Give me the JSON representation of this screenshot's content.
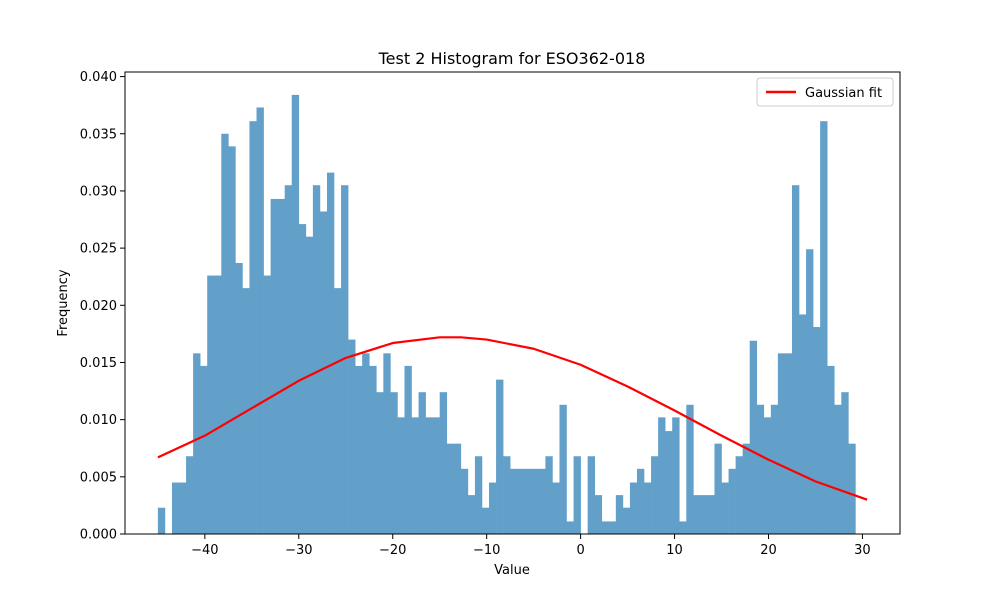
{
  "chart_data": {
    "type": "bar",
    "title": "Test 2 Histogram for ESO362-018",
    "xlabel": "Value",
    "ylabel": "Frequency",
    "xlim": [
      -48.5,
      34.0
    ],
    "ylim": [
      0,
      0.0404
    ],
    "xticks": [
      -40,
      -30,
      -20,
      -10,
      0,
      10,
      20,
      30
    ],
    "yticks": [
      0.0,
      0.005,
      0.01,
      0.015,
      0.02,
      0.025,
      0.03,
      0.035,
      0.04
    ],
    "ytick_labels": [
      "0.000",
      "0.005",
      "0.010",
      "0.015",
      "0.020",
      "0.025",
      "0.030",
      "0.035",
      "0.040"
    ],
    "grid": false,
    "legend_position": "upper right",
    "colors": {
      "bars": "#62a0ca",
      "fit": "#ff0000"
    },
    "histogram": {
      "bin_start": -45.0,
      "bin_width": 0.75,
      "frequencies": [
        0.0023,
        0,
        0.0045,
        0.0045,
        0.0068,
        0.0158,
        0.0147,
        0.0226,
        0.0226,
        0.035,
        0.0339,
        0.0237,
        0.0215,
        0.0361,
        0.0373,
        0.0226,
        0.0293,
        0.0293,
        0.0305,
        0.0384,
        0.0271,
        0.026,
        0.0305,
        0.0282,
        0.0316,
        0.0215,
        0.0305,
        0.017,
        0.0147,
        0.0158,
        0.0147,
        0.0124,
        0.0158,
        0.0124,
        0.0102,
        0.0147,
        0.0102,
        0.0124,
        0.0102,
        0.0102,
        0.0124,
        0.0079,
        0.0079,
        0.0057,
        0.0034,
        0.0068,
        0.0023,
        0.0045,
        0.0135,
        0.0068,
        0.0057,
        0.0057,
        0.0057,
        0.0057,
        0.0057,
        0.0068,
        0.0045,
        0.0113,
        0.0011,
        0.0068,
        0.0,
        0.0068,
        0.0034,
        0.0011,
        0.0011,
        0.0034,
        0.0023,
        0.0045,
        0.0057,
        0.0045,
        0.0068,
        0.0102,
        0.009,
        0.0102,
        0.0011,
        0.0113,
        0.0034,
        0.0034,
        0.0034,
        0.0079,
        0.0045,
        0.0057,
        0.0068,
        0.0079,
        0.0169,
        0.0113,
        0.0102,
        0.0113,
        0.0158,
        0.0158,
        0.0305,
        0.0192,
        0.0249,
        0.0181,
        0.0361,
        0.0147,
        0.0113,
        0.0124,
        0.0079
      ]
    },
    "series": [
      {
        "name": "Gaussian fit",
        "type": "line",
        "x": [
          -45,
          -40,
          -35,
          -30,
          -25,
          -20,
          -15,
          -12.75,
          -10,
          -5,
          0,
          5,
          10,
          15,
          20,
          25,
          30.5
        ],
        "y": [
          0.0067,
          0.0086,
          0.011,
          0.0134,
          0.0154,
          0.0167,
          0.0172,
          0.0172,
          0.017,
          0.0162,
          0.0148,
          0.0129,
          0.0108,
          0.0086,
          0.0065,
          0.0046,
          0.003
        ]
      }
    ]
  }
}
